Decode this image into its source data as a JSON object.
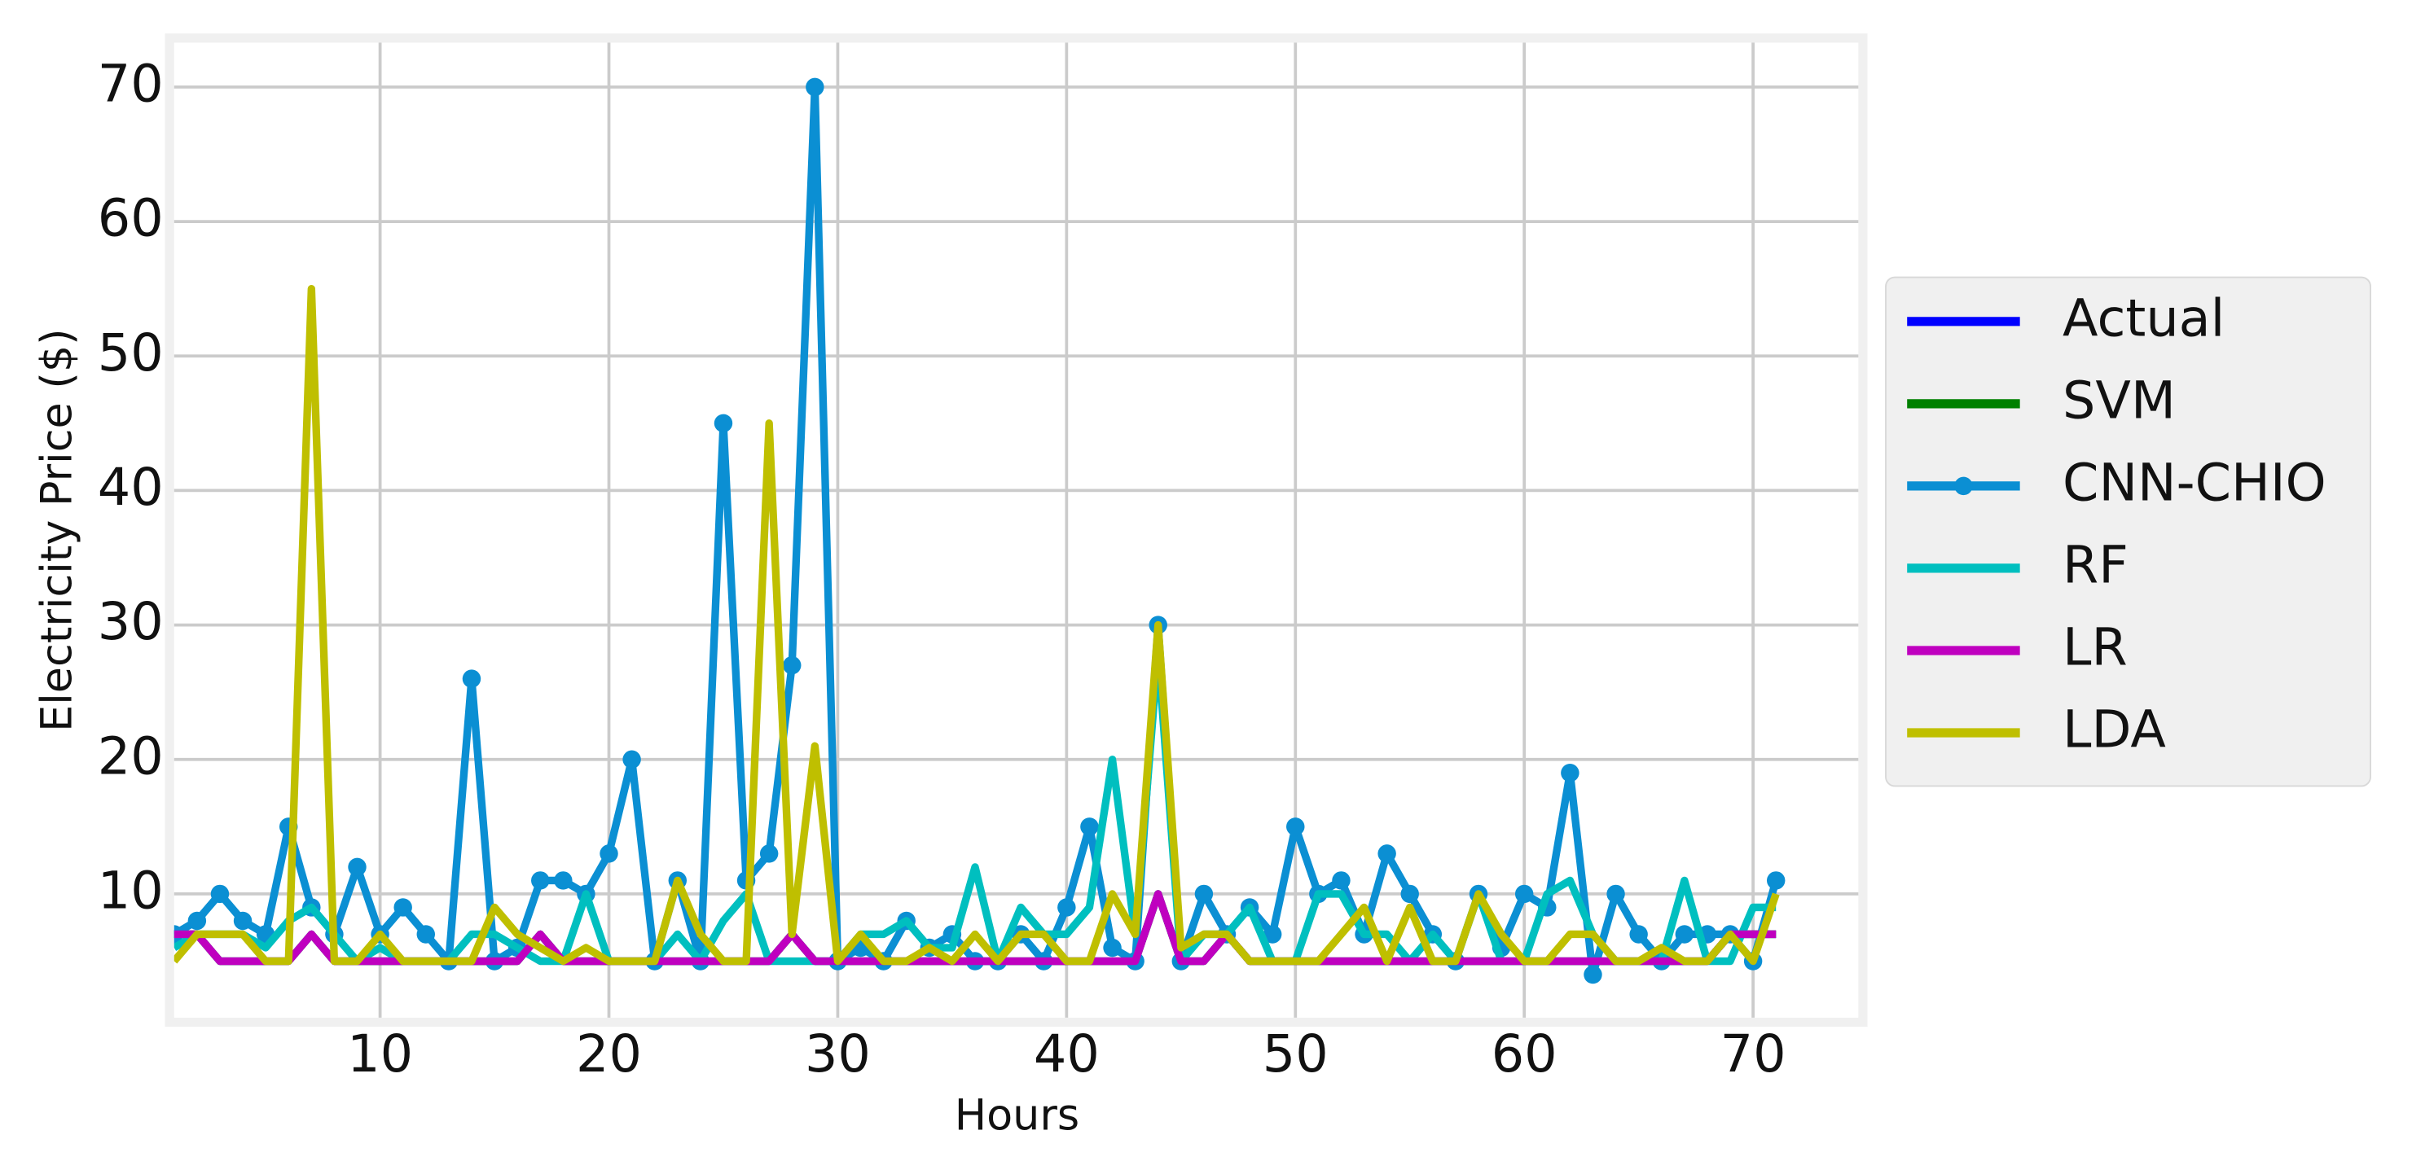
{
  "chart_data": {
    "type": "line",
    "xlabel": "Hours",
    "ylabel": "Electricity Price ($)",
    "x": [
      1,
      2,
      3,
      4,
      5,
      6,
      7,
      8,
      9,
      10,
      11,
      12,
      13,
      14,
      15,
      16,
      17,
      18,
      19,
      20,
      21,
      22,
      23,
      24,
      25,
      26,
      27,
      28,
      29,
      30,
      31,
      32,
      33,
      34,
      35,
      36,
      37,
      38,
      39,
      40,
      41,
      42,
      43,
      44,
      45,
      46,
      47,
      48,
      49,
      50,
      51,
      52,
      53,
      54,
      55,
      56,
      57,
      58,
      59,
      60,
      61,
      62,
      63,
      64,
      65,
      66,
      67,
      68,
      69,
      70,
      71
    ],
    "xlim": [
      1,
      74.6
    ],
    "ylim": [
      0.8,
      73.3
    ],
    "xticks": [
      10,
      20,
      30,
      40,
      50,
      60,
      70
    ],
    "yticks": [
      10,
      20,
      30,
      40,
      50,
      60,
      70
    ],
    "grid": true,
    "legend": "right",
    "series": [
      {
        "name": "Actual",
        "color": "#0000ff",
        "values": [
          7,
          7,
          5,
          5,
          5,
          5,
          7,
          5,
          5,
          5,
          5,
          5,
          5,
          5,
          5,
          5,
          7,
          5,
          5,
          5,
          5,
          5,
          5,
          5,
          5,
          5,
          5,
          7,
          5,
          5,
          5,
          5,
          5,
          5,
          5,
          5,
          5,
          5,
          5,
          5,
          5,
          5,
          5,
          10,
          5,
          5,
          7,
          5,
          5,
          5,
          5,
          5,
          5,
          5,
          5,
          5,
          5,
          5,
          5,
          5,
          5,
          5,
          5,
          5,
          5,
          5,
          5,
          5,
          7,
          7,
          7
        ]
      },
      {
        "name": "SVM",
        "color": "#008000",
        "values": [
          7,
          7,
          5,
          5,
          5,
          5,
          7,
          5,
          5,
          5,
          5,
          5,
          5,
          5,
          5,
          5,
          7,
          5,
          5,
          5,
          5,
          5,
          5,
          5,
          5,
          5,
          5,
          7,
          5,
          5,
          5,
          5,
          5,
          5,
          5,
          5,
          5,
          5,
          5,
          5,
          5,
          5,
          5,
          10,
          5,
          5,
          7,
          5,
          5,
          5,
          5,
          5,
          5,
          5,
          5,
          5,
          5,
          5,
          5,
          5,
          5,
          5,
          5,
          5,
          5,
          5,
          5,
          5,
          7,
          7,
          7
        ]
      },
      {
        "name": "CNN-CHIO",
        "color": "#0b8fd3",
        "marker": "o",
        "values": [
          7,
          8,
          10,
          8,
          7,
          15,
          9,
          7,
          12,
          7,
          9,
          7,
          5,
          26,
          5,
          6,
          11,
          11,
          10,
          13,
          20,
          5,
          11,
          5,
          45,
          11,
          13,
          27,
          70,
          5,
          6,
          5,
          8,
          6,
          7,
          5,
          5,
          7,
          5,
          9,
          15,
          6,
          5,
          30,
          5,
          10,
          7,
          9,
          7,
          15,
          10,
          11,
          7,
          13,
          10,
          7,
          5,
          10,
          6,
          10,
          9,
          19,
          4,
          10,
          7,
          5,
          7,
          7,
          7,
          5,
          11
        ]
      },
      {
        "name": "RF",
        "color": "#00bfbf",
        "values": [
          6,
          7,
          7,
          7,
          6,
          8,
          9,
          7,
          5,
          6,
          5,
          5,
          5,
          7,
          7,
          6,
          5,
          5,
          10,
          5,
          5,
          5,
          7,
          5,
          8,
          10,
          5,
          5,
          5,
          5,
          7,
          7,
          8,
          6,
          6,
          12,
          5,
          9,
          7,
          7,
          9,
          20,
          7,
          28,
          5,
          7,
          7,
          9,
          5,
          5,
          10,
          10,
          7,
          7,
          5,
          7,
          5,
          10,
          5,
          5,
          10,
          11,
          7,
          5,
          5,
          5,
          11,
          5,
          5,
          9,
          9
        ]
      },
      {
        "name": "LR",
        "color": "#bf00bf",
        "values": [
          7,
          7,
          5,
          5,
          5,
          5,
          7,
          5,
          5,
          5,
          5,
          5,
          5,
          5,
          5,
          5,
          7,
          5,
          5,
          5,
          5,
          5,
          5,
          5,
          5,
          5,
          5,
          7,
          5,
          5,
          5,
          5,
          5,
          5,
          5,
          5,
          5,
          5,
          5,
          5,
          5,
          5,
          5,
          10,
          5,
          5,
          7,
          5,
          5,
          5,
          5,
          5,
          5,
          5,
          5,
          5,
          5,
          5,
          5,
          5,
          5,
          5,
          5,
          5,
          5,
          5,
          5,
          5,
          7,
          7,
          7
        ]
      },
      {
        "name": "LDA",
        "color": "#bfbf00",
        "values": [
          5,
          7,
          7,
          7,
          5,
          5,
          55,
          5,
          5,
          7,
          5,
          5,
          5,
          5,
          9,
          7,
          6,
          5,
          6,
          5,
          5,
          5,
          11,
          7,
          5,
          5,
          45,
          7,
          21,
          5,
          7,
          5,
          5,
          6,
          5,
          7,
          5,
          7,
          7,
          5,
          5,
          10,
          7,
          30,
          6,
          7,
          7,
          5,
          5,
          5,
          5,
          7,
          9,
          5,
          9,
          5,
          5,
          10,
          7,
          5,
          5,
          7,
          7,
          5,
          5,
          6,
          5,
          5,
          7,
          5,
          10
        ]
      }
    ]
  }
}
